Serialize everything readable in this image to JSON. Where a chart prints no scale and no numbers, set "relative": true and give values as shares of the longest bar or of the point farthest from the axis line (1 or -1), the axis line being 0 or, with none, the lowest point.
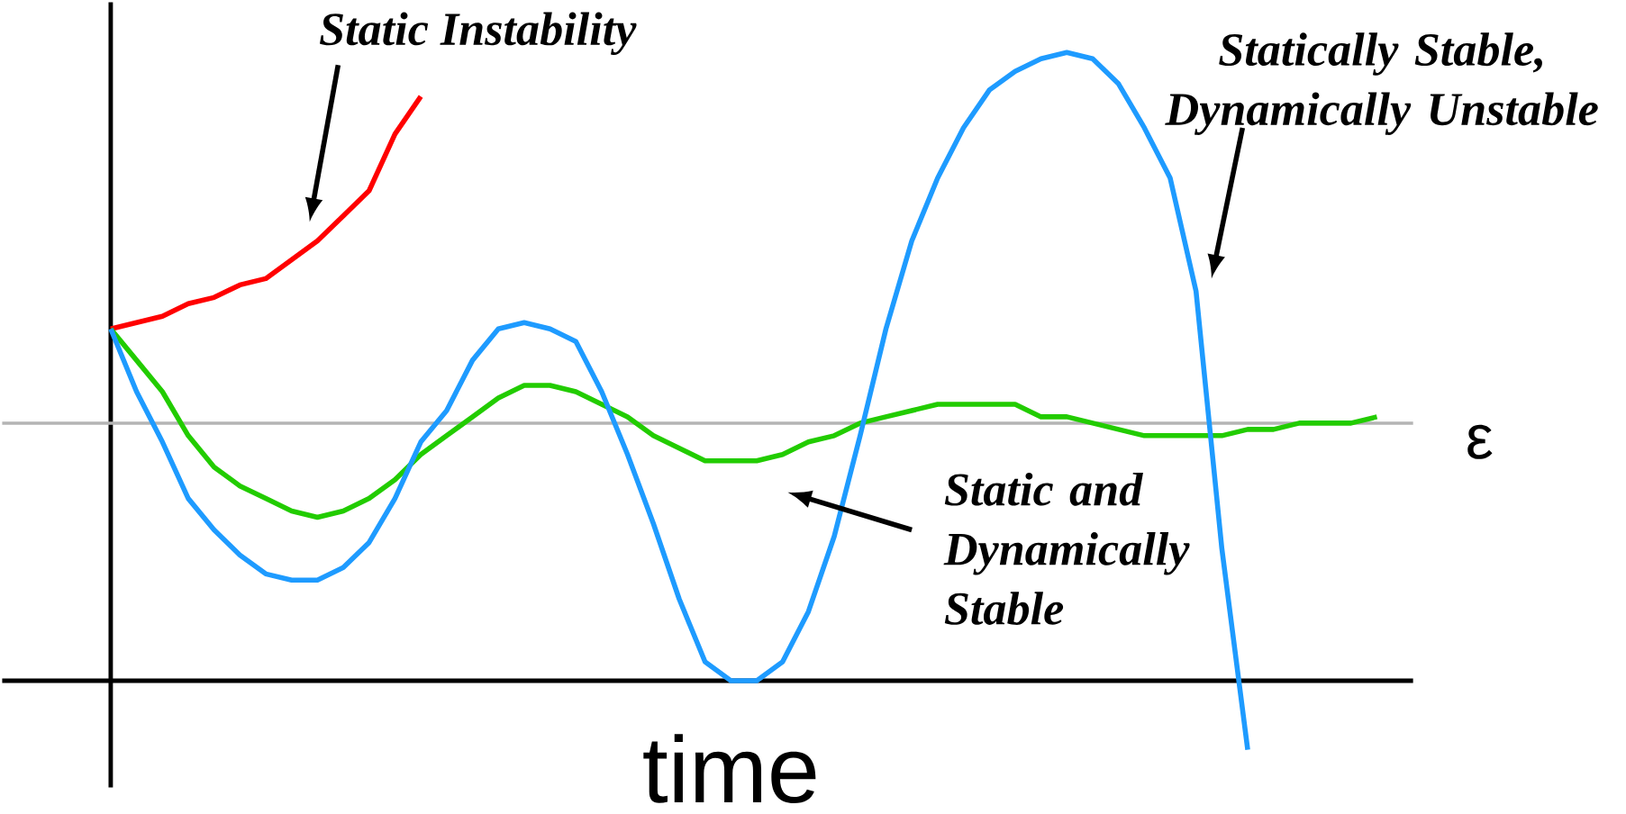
{
  "chart_data": {
    "type": "line",
    "relative": true,
    "xlabel": "time",
    "categories": [
      null,
      null,
      null,
      null,
      null,
      null,
      null,
      null,
      null,
      null,
      null,
      null,
      null,
      null,
      null,
      null,
      null,
      null,
      null,
      null,
      null,
      null,
      null,
      null,
      null,
      null,
      null,
      null,
      null,
      null,
      null,
      null,
      null,
      null,
      null,
      null,
      null,
      null,
      null,
      null,
      null,
      null,
      null,
      null,
      null,
      null,
      null,
      null,
      null,
      null
    ],
    "series": [
      {
        "color": "#ff0000",
        "values": [
          0.56,
          0.57,
          0.58,
          0.6,
          0.61,
          0.63,
          0.64,
          0.67,
          0.7,
          0.74,
          0.78,
          0.87,
          0.93,
          null,
          null,
          null,
          null,
          null,
          null,
          null,
          null,
          null,
          null,
          null,
          null,
          null,
          null,
          null,
          null,
          null,
          null,
          null,
          null,
          null,
          null,
          null,
          null,
          null,
          null,
          null,
          null,
          null,
          null,
          null,
          null,
          null,
          null,
          null,
          null,
          null
        ]
      },
      {
        "color": "#22cc00",
        "values": [
          0.56,
          0.51,
          0.46,
          0.39,
          0.34,
          0.31,
          0.29,
          0.27,
          0.26,
          0.27,
          0.29,
          0.32,
          0.36,
          0.39,
          0.42,
          0.45,
          0.47,
          0.47,
          0.46,
          0.44,
          0.42,
          0.39,
          0.37,
          0.35,
          0.35,
          0.35,
          0.36,
          0.38,
          0.39,
          0.41,
          0.42,
          0.43,
          0.44,
          0.44,
          0.44,
          0.44,
          0.42,
          0.42,
          0.41,
          0.4,
          0.39,
          0.39,
          0.39,
          0.39,
          0.4,
          0.4,
          0.41,
          0.41,
          0.41,
          0.42
        ]
      },
      {
        "color": "#1e9bff",
        "values": [
          0.56,
          0.46,
          0.38,
          0.29,
          0.24,
          0.2,
          0.17,
          0.16,
          0.16,
          0.18,
          0.22,
          0.29,
          0.38,
          0.43,
          0.51,
          0.56,
          0.57,
          0.56,
          0.54,
          0.46,
          0.36,
          0.25,
          0.13,
          0.03,
          0,
          0,
          0.03,
          0.11,
          0.23,
          0.39,
          0.56,
          0.7,
          0.8,
          0.88,
          0.94,
          0.97,
          0.99,
          1.0,
          0.99,
          0.95,
          0.88,
          0.8,
          0.62,
          0.21,
          -0.11,
          null,
          null,
          null,
          null,
          null
        ]
      }
    ],
    "ref_lines": [
      {
        "axis": "y",
        "value": 0.41,
        "label": "ε",
        "color": "#b4b4b4"
      }
    ],
    "annotations": [
      "Static Instability",
      "Statically Stable, Dynamically Unstable",
      "Static and Dynamically Stable"
    ]
  }
}
